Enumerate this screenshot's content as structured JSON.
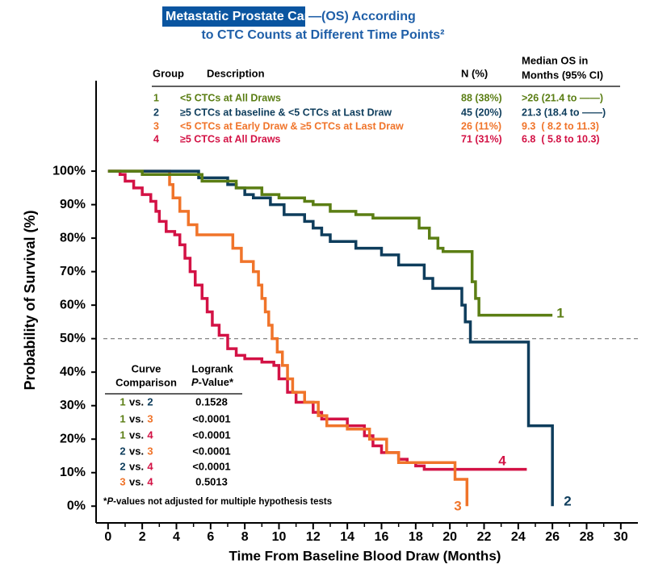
{
  "chart_data": {
    "type": "step",
    "title": "Metastatic Prostate Cancer*",
    "title_rest": "—(OS) According",
    "subtitle": "to CTC Counts at Different Time Points²",
    "xlabel": "Time From Baseline Blood Draw (Months)",
    "ylabel": "Probability of Survival (%)",
    "xlim": [
      -0.7,
      31
    ],
    "ylim": [
      -5,
      127
    ],
    "xticks": [
      0,
      2,
      4,
      6,
      8,
      10,
      12,
      14,
      16,
      18,
      20,
      22,
      24,
      26,
      28,
      30
    ],
    "xminor_ticks": [
      1,
      3,
      5,
      7,
      9,
      11,
      13,
      15,
      17,
      19,
      21,
      23,
      25,
      27,
      29
    ],
    "yticks": [
      {
        "value": 0,
        "label": "0%"
      },
      {
        "value": 10,
        "label": "10%"
      },
      {
        "value": 20,
        "label": "20%"
      },
      {
        "value": 30,
        "label": "30%"
      },
      {
        "value": 40,
        "label": "40%"
      },
      {
        "value": 50,
        "label": "50%"
      },
      {
        "value": 60,
        "label": "60%"
      },
      {
        "value": 70,
        "label": "70%"
      },
      {
        "value": 80,
        "label": "80%"
      },
      {
        "value": 90,
        "label": "90%"
      },
      {
        "value": 100,
        "label": "100%"
      }
    ],
    "reference_line": 50,
    "series": [
      {
        "name": "1",
        "color": "#5b7e14",
        "x": [
          0,
          2,
          5.5,
          7.5,
          9,
          10,
          11.5,
          12,
          13,
          14.5,
          15.5,
          18.2,
          18.8,
          19.3,
          19.6,
          21.3,
          21.5,
          21.7,
          26
        ],
        "values": [
          100,
          99,
          97,
          95,
          93,
          92,
          91,
          90,
          88,
          87,
          86,
          83,
          80,
          77,
          76,
          67,
          62,
          57,
          57
        ]
      },
      {
        "name": "2",
        "color": "#0e3d5c",
        "x": [
          0,
          5.3,
          7,
          7.5,
          8,
          8.5,
          9.5,
          10.3,
          11.5,
          12,
          12.5,
          13,
          14.5,
          16,
          17,
          18.5,
          19,
          20.7,
          20.9,
          21.2,
          24.6,
          26
        ],
        "values": [
          100,
          98,
          96,
          95,
          93,
          92,
          90,
          87,
          85,
          83,
          81,
          79,
          77,
          75,
          72,
          68,
          65,
          60,
          55,
          49,
          24,
          0
        ]
      },
      {
        "name": "3",
        "color": "#f0742a",
        "x": [
          0,
          3.6,
          3.8,
          4.2,
          4.7,
          5.2,
          7.3,
          7.8,
          8.5,
          8.8,
          9,
          9.2,
          9.4,
          9.6,
          9.9,
          10.2,
          10.5,
          10.8,
          11.5,
          12.3,
          12.8,
          14,
          15.3,
          16.3,
          17,
          20.3,
          21
        ],
        "values": [
          100,
          96,
          92,
          88,
          84,
          81,
          77,
          73,
          70,
          66,
          62,
          58,
          54,
          50,
          46,
          42,
          38,
          34,
          31,
          27,
          24,
          23,
          20,
          16,
          13,
          8,
          0
        ]
      },
      {
        "name": "4",
        "color": "#d31245",
        "x": [
          0,
          0.7,
          1,
          1.5,
          2,
          2.5,
          2.8,
          3,
          3.4,
          3.9,
          4.2,
          4.5,
          4.8,
          5.1,
          5.5,
          5.8,
          6.1,
          6.5,
          7,
          7.5,
          8,
          9,
          9.7,
          10,
          10.5,
          11,
          12,
          12.5,
          14,
          15,
          15.5,
          16,
          17,
          17.5,
          18,
          18.5,
          24.5
        ],
        "values": [
          100,
          99,
          97,
          95,
          93,
          91,
          88,
          85,
          82,
          81,
          78,
          74,
          70,
          66,
          62,
          58,
          54,
          51,
          47,
          45,
          44,
          43,
          42,
          38,
          34,
          31,
          28,
          26,
          24,
          21,
          18,
          16,
          14,
          13,
          12,
          11,
          11
        ]
      }
    ],
    "group_table": {
      "headers": [
        "Group",
        "Description",
        "N (%)"
      ],
      "median_header": [
        "Median OS in",
        "Months (95% CI)"
      ],
      "rows": [
        [
          "1",
          "<5 CTCs at All Draws",
          "88 (38%)",
          ">26 (21.4 to ——)"
        ],
        [
          "2",
          "≥5 CTCs at baseline & <5 CTCs at Last Draw",
          "45 (20%)",
          "21.3 (18.4 to ——)"
        ],
        [
          "3",
          "<5 CTCs at Early Draw & ≥5 CTCs at Last Draw",
          "26 (11%)",
          "9.3  ( 8.2 to 11.3)"
        ],
        [
          "4",
          "≥5 CTCs at All Draws",
          "71 (31%)",
          "6.8  ( 5.8 to 10.3)"
        ]
      ]
    },
    "comparison_table": {
      "curve_header": [
        "Curve",
        "Comparison"
      ],
      "logrank_header": "Logrank",
      "p_italic": "P",
      "p_rest": "-Value*",
      "rows": [
        {
          "left": "1",
          "sep": "vs.",
          "right": "2",
          "p": "0.1528"
        },
        {
          "left": "1",
          "sep": "vs.",
          "right": "3",
          "p": "<0.0001"
        },
        {
          "left": "1",
          "sep": "vs.",
          "right": "4",
          "p": "<0.0001"
        },
        {
          "left": "2",
          "sep": "vs.",
          "right": "3",
          "p": "<0.0001"
        },
        {
          "left": "2",
          "sep": "vs.",
          "right": "4",
          "p": "<0.0001"
        },
        {
          "left": "3",
          "sep": "vs.",
          "right": "4",
          "p": "0.5013"
        }
      ]
    },
    "footnote": {
      "star": "*",
      "italic": "P",
      "rest": "-values not adjusted for multiple hypothesis tests"
    }
  }
}
